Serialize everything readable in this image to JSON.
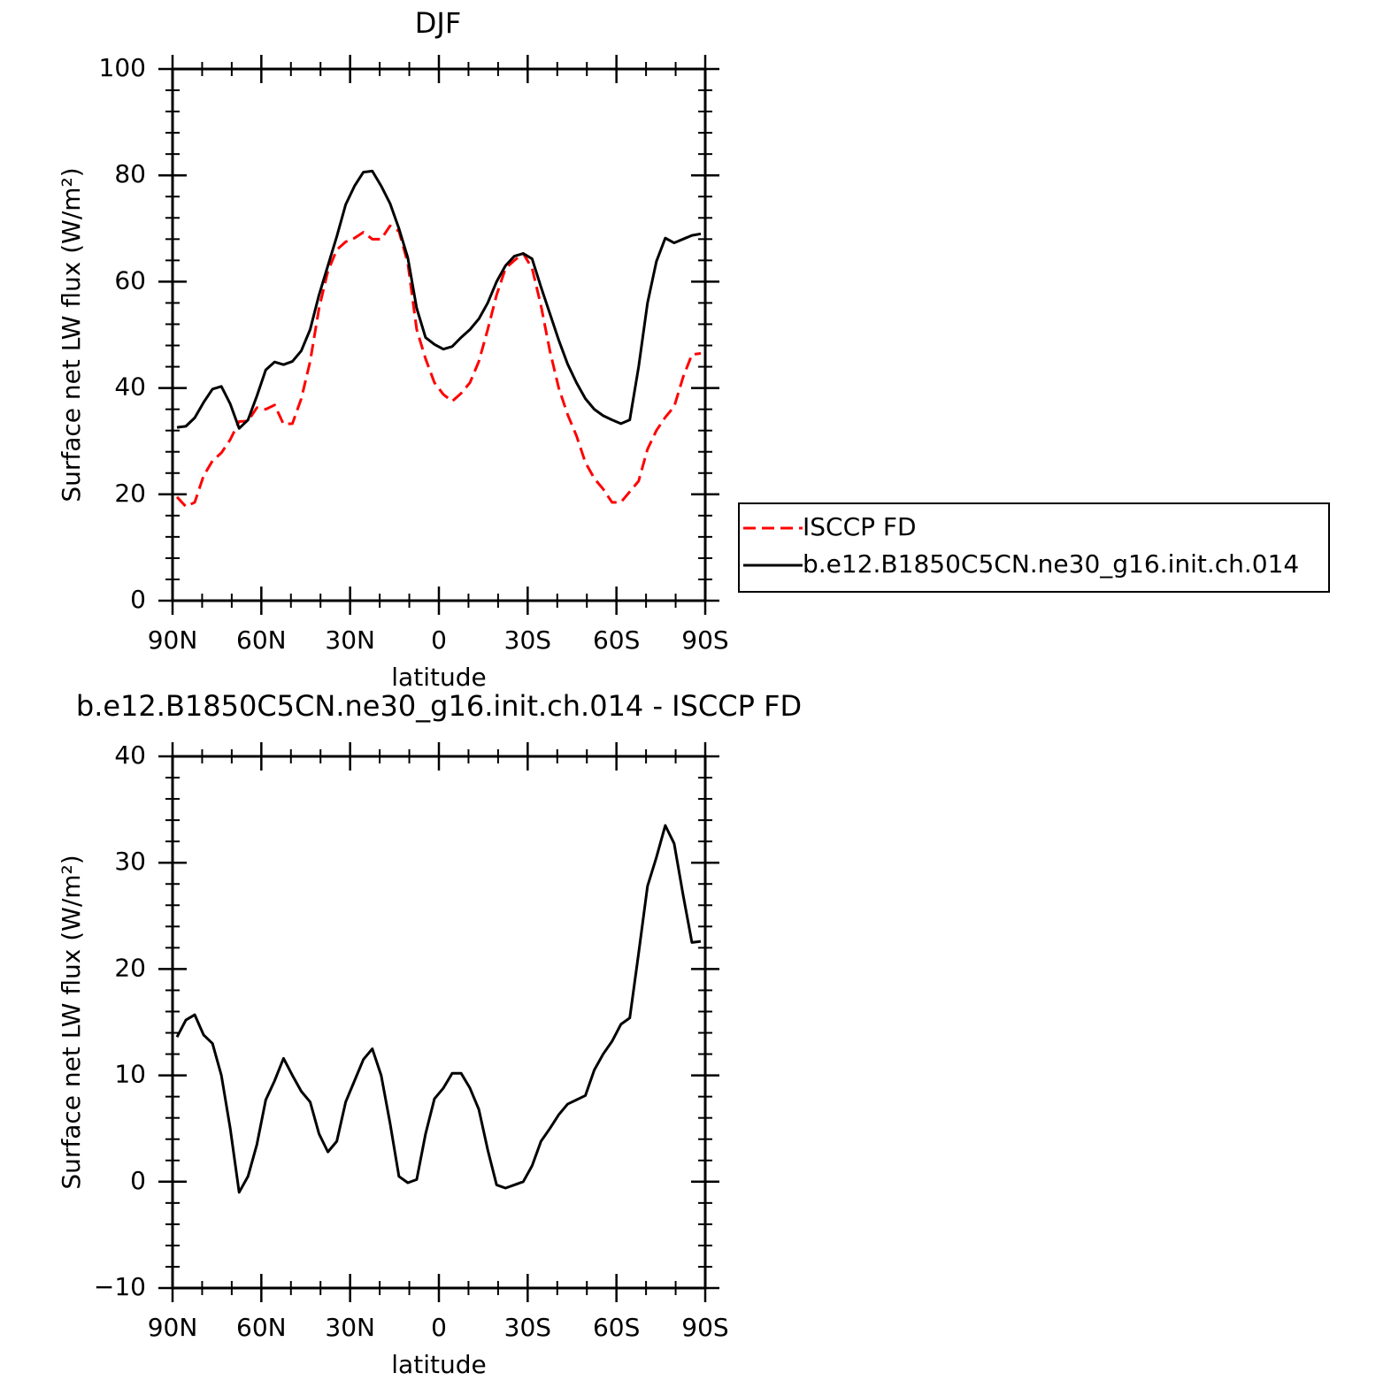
{
  "chart_data": [
    {
      "type": "line",
      "title": "DJF",
      "xlabel": "latitude",
      "ylabel": "Surface net LW flux (W/m²)",
      "x": [
        88.5,
        85.5,
        82.5,
        79.5,
        76.5,
        73.5,
        70.5,
        67.5,
        64.5,
        61.5,
        58.5,
        55.5,
        52.5,
        49.5,
        46.5,
        43.5,
        40.5,
        37.5,
        34.5,
        31.5,
        28.5,
        25.5,
        22.5,
        19.5,
        16.5,
        13.5,
        10.5,
        7.5,
        4.5,
        1.5,
        -1.5,
        -4.5,
        -7.5,
        -10.5,
        -13.5,
        -16.5,
        -19.5,
        -22.5,
        -25.5,
        -28.5,
        -31.5,
        -34.5,
        -37.5,
        -40.5,
        -43.5,
        -46.5,
        -49.5,
        -52.5,
        -55.5,
        -58.5,
        -61.5,
        -64.5,
        -67.5,
        -70.5,
        -73.5,
        -76.5,
        -79.5,
        -82.5,
        -85.5,
        -88.5
      ],
      "xlim": [
        90,
        -90
      ],
      "xticks": [
        {
          "value": 90,
          "label": "90N"
        },
        {
          "value": 60,
          "label": "60N"
        },
        {
          "value": 30,
          "label": "30N"
        },
        0,
        {
          "value": -30,
          "label": "30S"
        },
        {
          "value": -60,
          "label": "60S"
        },
        {
          "value": -90,
          "label": "90S"
        }
      ],
      "ylim": [
        0,
        100
      ],
      "yticks": [
        0,
        20,
        40,
        60,
        80,
        100
      ],
      "legend": "right",
      "series": [
        {
          "name": "ISCCP FD",
          "color": "#ff0000",
          "dash": true,
          "values": [
            19.5,
            17.7,
            18.5,
            23.5,
            26.3,
            27.8,
            30.3,
            33.7,
            33.8,
            36.3,
            36,
            36.8,
            33.2,
            33.3,
            38,
            45,
            55,
            62,
            66,
            67.5,
            68.2,
            69.3,
            68,
            68,
            70.5,
            69.5,
            63.5,
            51,
            45.5,
            41,
            38.8,
            37.5,
            39,
            41,
            45,
            51,
            57.5,
            62.5,
            64,
            65.3,
            62.5,
            55.5,
            47,
            40,
            35,
            31,
            26,
            23,
            21,
            18.5,
            18.5,
            20.5,
            22.5,
            28.5,
            32,
            34.5,
            36.5,
            42,
            46.3,
            46.5
          ]
        },
        {
          "name": "b.e12.B1850C5CN.ne30_g16.init.ch.014",
          "color": "#000000",
          "dash": false,
          "values": [
            32.6,
            32.8,
            34.4,
            37.3,
            39.8,
            40.3,
            37,
            32.4,
            34,
            38.5,
            43.4,
            44.9,
            44.4,
            45,
            47,
            51,
            57.5,
            63,
            68.5,
            74.5,
            78,
            80.6,
            80.8,
            78,
            74.7,
            70,
            64.5,
            55,
            49.5,
            48.2,
            47.3,
            47.8,
            49.5,
            51,
            53,
            56,
            60,
            63,
            64.8,
            65.3,
            64.3,
            59,
            54,
            49,
            44.5,
            41,
            38,
            36,
            34.8,
            34,
            33.3,
            34,
            44,
            56,
            63.8,
            68.2,
            67.3,
            68,
            68.7,
            69
          ]
        }
      ]
    },
    {
      "type": "line",
      "title": "b.e12.B1850C5CN.ne30_g16.init.ch.014 - ISCCP FD",
      "xlabel": "latitude",
      "ylabel": "Surface net LW flux (W/m²)",
      "x": [
        88.5,
        85.5,
        82.5,
        79.5,
        76.5,
        73.5,
        70.5,
        67.5,
        64.5,
        61.5,
        58.5,
        55.5,
        52.5,
        49.5,
        46.5,
        43.5,
        40.5,
        37.5,
        34.5,
        31.5,
        28.5,
        25.5,
        22.5,
        19.5,
        16.5,
        13.5,
        10.5,
        7.5,
        4.5,
        1.5,
        -1.5,
        -4.5,
        -7.5,
        -10.5,
        -13.5,
        -16.5,
        -19.5,
        -22.5,
        -25.5,
        -28.5,
        -31.5,
        -34.5,
        -37.5,
        -40.5,
        -43.5,
        -46.5,
        -49.5,
        -52.5,
        -55.5,
        -58.5,
        -61.5,
        -64.5,
        -67.5,
        -70.5,
        -73.5,
        -76.5,
        -79.5,
        -82.5,
        -85.5,
        -88.5
      ],
      "xlim": [
        90,
        -90
      ],
      "xticks": [
        {
          "value": 90,
          "label": "90N"
        },
        {
          "value": 60,
          "label": "60N"
        },
        {
          "value": 30,
          "label": "30N"
        },
        0,
        {
          "value": -30,
          "label": "30S"
        },
        {
          "value": -60,
          "label": "60S"
        },
        {
          "value": -90,
          "label": "90S"
        }
      ],
      "ylim": [
        -10,
        40
      ],
      "yticks": [
        {
          "value": -10,
          "label": "−10"
        },
        0,
        10,
        20,
        30,
        40
      ],
      "color": "#000000",
      "values": [
        13.6,
        15.2,
        15.7,
        13.8,
        13,
        10,
        5,
        -1,
        0.5,
        3.5,
        7.7,
        9.5,
        11.6,
        10,
        8.5,
        7.5,
        4.5,
        2.8,
        3.8,
        7.5,
        9.5,
        11.5,
        12.5,
        10,
        5.5,
        0.5,
        -0.1,
        0.2,
        4.5,
        7.8,
        8.8,
        10.2,
        10.2,
        8.8,
        6.8,
        3,
        -0.3,
        -0.6,
        -0.3,
        0,
        1.5,
        3.8,
        5,
        6.3,
        7.3,
        7.7,
        8.1,
        10.5,
        12,
        13.2,
        14.8,
        15.4,
        21.5,
        27.8,
        30.5,
        33.5,
        31.8,
        27,
        22.5,
        22.6
      ]
    }
  ]
}
